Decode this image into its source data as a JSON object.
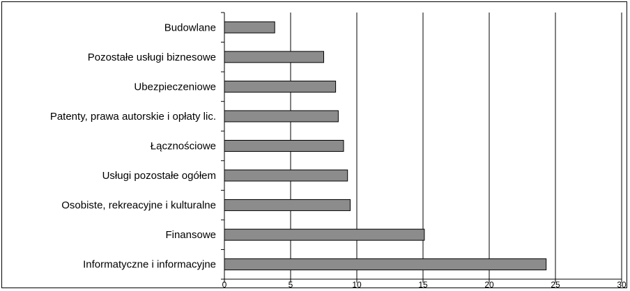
{
  "chart_data": {
    "type": "bar",
    "orientation": "horizontal",
    "categories": [
      "Budowlane",
      "Pozostałe usługi biznesowe",
      "Ubezpieczeniowe",
      "Patenty, prawa autorskie i opłaty lic.",
      "Łącznościowe",
      "Usługi pozostałe ogółem",
      "Osobiste, rekreacyjne i kulturalne",
      "Finansowe",
      "Informatyczne i informacyjne"
    ],
    "values": [
      3.8,
      7.5,
      8.4,
      8.6,
      9.0,
      9.3,
      9.5,
      15.1,
      24.3
    ],
    "xlim": [
      0,
      30
    ],
    "xticks": [
      "0",
      "5",
      "10",
      "15",
      "20",
      "25",
      "30"
    ],
    "grid": "vertical",
    "legend": "none",
    "colors": {
      "bar": "#8c8c8c",
      "bar_stroke": "#000000",
      "grid": "#000000"
    }
  }
}
